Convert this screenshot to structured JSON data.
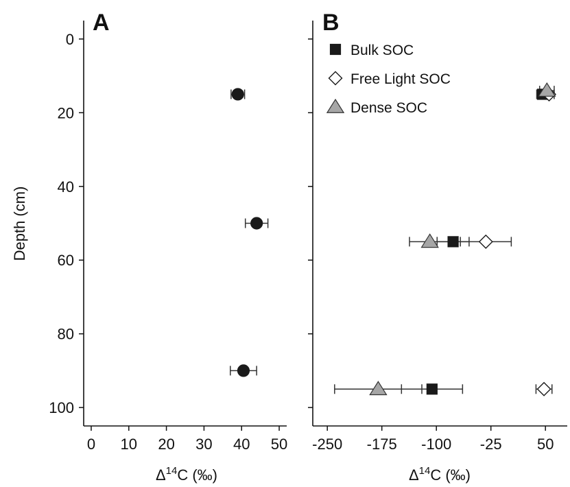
{
  "chart_data": [
    {
      "panel": "A",
      "type": "scatter",
      "xlabel": "Δ14C (‰)",
      "ylabel": "Depth (cm)",
      "xlim": [
        -2,
        52
      ],
      "ylim": [
        105,
        -5
      ],
      "xticks": [
        0,
        10,
        20,
        30,
        40,
        50
      ],
      "yticks": [
        0,
        20,
        40,
        60,
        80,
        100
      ],
      "series": [
        {
          "marker": "circle",
          "color": "#1a1a1a",
          "points": [
            {
              "x": 39,
              "y": 15,
              "err": 1.8
            },
            {
              "x": 44,
              "y": 50,
              "err": 3
            },
            {
              "x": 40.5,
              "y": 90,
              "err": 3.5
            }
          ]
        }
      ]
    },
    {
      "panel": "B",
      "type": "scatter",
      "xlabel": "Δ14C (‰)",
      "ylabel": "Depth (cm)",
      "xlim": [
        -270,
        80
      ],
      "ylim": [
        105,
        -5
      ],
      "xticks": [
        -250,
        -175,
        -100,
        -25,
        50
      ],
      "yticks": [
        0,
        20,
        40,
        60,
        80,
        100
      ],
      "legend_position": "top-left",
      "series": [
        {
          "name": "Bulk SOC",
          "marker": "square",
          "color": "#1a1a1a",
          "points": [
            {
              "x": 46,
              "y": 15,
              "err": 8
            },
            {
              "x": -77,
              "y": 55,
              "err": 22
            },
            {
              "x": -106,
              "y": 95,
              "err": 42
            }
          ]
        },
        {
          "name": "Free Light SOC",
          "marker": "diamond",
          "color": "#ffffff",
          "points": [
            {
              "x": 55,
              "y": 15,
              "err": 7
            },
            {
              "x": -32,
              "y": 55,
              "err": 35
            },
            {
              "x": 48,
              "y": 95,
              "err": 11
            }
          ]
        },
        {
          "name": "Dense SOC",
          "marker": "triangle",
          "color": "#a6a6a6",
          "points": [
            {
              "x": 52,
              "y": 14,
              "err": 10
            },
            {
              "x": -109,
              "y": 55,
              "err": 28
            },
            {
              "x": -180,
              "y": 95,
              "err": 60
            }
          ]
        }
      ]
    }
  ]
}
